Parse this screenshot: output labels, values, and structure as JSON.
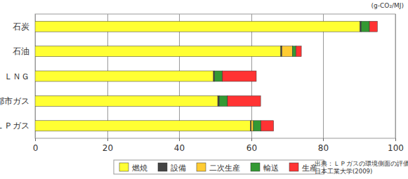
{
  "chart_data": {
    "type": "bar",
    "orientation": "horizontal",
    "stacked": true,
    "xlabel": "(g-CO₂/MJ)",
    "annotations": [
      "出典：ＬＰガスの環境側面の評価",
      "日本工業大学(2009)"
    ],
    "categories": [
      "石炭",
      "石油",
      "ＬＮＧ",
      "都市ガス",
      "ＬＰガス"
    ],
    "series": [
      {
        "name": "燃焼",
        "color": "#ffff33",
        "values": [
          90.2,
          68.2,
          49.5,
          50.7,
          59.8
        ]
      },
      {
        "name": "設備",
        "color": "#444444",
        "values": [
          0.3,
          0.3,
          0.3,
          0.4,
          0.2
        ]
      },
      {
        "name": "二次生産",
        "color": "#ffcc33",
        "values": [
          0,
          2.9,
          0,
          0,
          0.6
        ]
      },
      {
        "name": "輸送",
        "color": "#339933",
        "values": [
          2.3,
          1.0,
          2.2,
          2.3,
          2.1
        ]
      },
      {
        "name": "生産",
        "color": "#ff3333",
        "values": [
          2.2,
          1.5,
          9.4,
          9.2,
          3.5
        ]
      }
    ],
    "xlim": [
      0,
      100
    ],
    "xticks": [
      0,
      20,
      40,
      60,
      80,
      100
    ],
    "grid": true,
    "legend": "bottom"
  }
}
